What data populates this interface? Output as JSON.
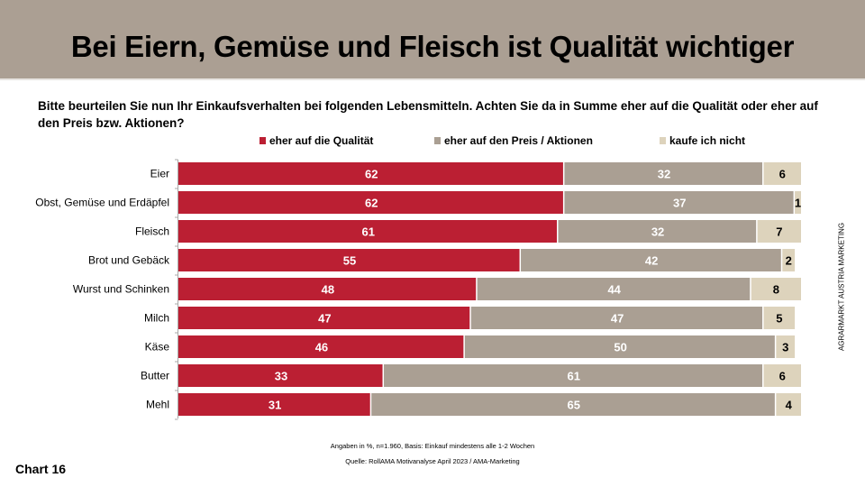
{
  "header": {
    "title": "Bei Eiern, Gemüse und Fleisch ist Qualität wichtiger"
  },
  "question": "Bitte beurteilen Sie nun Ihr Einkaufsverhalten bei folgenden Lebensmitteln. Achten Sie da in Summe eher auf die Qualität oder eher auf den Preis bzw. Aktionen?",
  "side_label": "AGRARMARKT AUSTRIA MARKETING",
  "footnotes": {
    "basis": "Angaben in %, n=1.960, Basis: Einkauf mindestens alle 1-2 Wochen",
    "source": "Quelle: RollAMA Motivanalyse April 2023 / AMA-Marketing"
  },
  "chart_number": "Chart 16",
  "colors": {
    "quality": "#bb1f33",
    "price": "#aa9f93",
    "not_buy": "#ddd3bc",
    "header_bg": "#ab9f93"
  },
  "chart_data": {
    "type": "bar",
    "orientation": "horizontal",
    "stacked": true,
    "title": "Bei Eiern, Gemüse und Fleisch ist Qualität wichtiger",
    "xlabel": "",
    "ylabel": "",
    "xlim": [
      0,
      100
    ],
    "grid": false,
    "legend_position": "top",
    "categories": [
      "Eier",
      "Obst, Gemüse und Erdäpfel",
      "Fleisch",
      "Brot und Gebäck",
      "Wurst und Schinken",
      "Milch",
      "Käse",
      "Butter",
      "Mehl"
    ],
    "series": [
      {
        "name": "eher auf die Qualität",
        "color": "#bb1f33",
        "label_color": "#ffffff",
        "values": [
          62,
          62,
          61,
          55,
          48,
          47,
          46,
          33,
          31
        ]
      },
      {
        "name": "eher auf den Preis / Aktionen",
        "color": "#aa9f93",
        "label_color": "#ffffff",
        "values": [
          32,
          37,
          32,
          42,
          44,
          47,
          50,
          61,
          65
        ]
      },
      {
        "name": "kaufe ich nicht",
        "color": "#ddd3bc",
        "label_color": "#000000",
        "values": [
          6,
          1,
          7,
          2,
          8,
          5,
          3,
          6,
          4
        ]
      }
    ]
  }
}
